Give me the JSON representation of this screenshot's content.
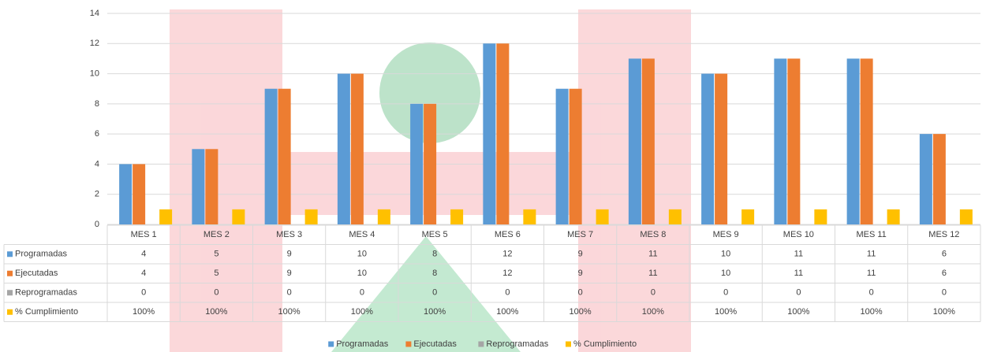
{
  "chart_data": {
    "type": "bar",
    "categories": [
      "MES 1",
      "MES 2",
      "MES 3",
      "MES 4",
      "MES 5",
      "MES 6",
      "MES 7",
      "MES 8",
      "MES 9",
      "MES 10",
      "MES 11",
      "MES 12"
    ],
    "series": [
      {
        "name": "Programadas",
        "color": "#5b9bd5",
        "values": [
          4,
          5,
          9,
          10,
          8,
          12,
          9,
          11,
          10,
          11,
          11,
          6
        ]
      },
      {
        "name": "Ejecutadas",
        "color": "#ed7d31",
        "values": [
          4,
          5,
          9,
          10,
          8,
          12,
          9,
          11,
          10,
          11,
          11,
          6
        ]
      },
      {
        "name": "Reprogramadas",
        "color": "#a5a5a5",
        "values": [
          0,
          0,
          0,
          0,
          0,
          0,
          0,
          0,
          0,
          0,
          0,
          0
        ]
      },
      {
        "name": "% Cumplimiento",
        "color": "#ffc000",
        "values": [
          1,
          1,
          1,
          1,
          1,
          1,
          1,
          1,
          1,
          1,
          1,
          1
        ],
        "value_labels": [
          "100%",
          "100%",
          "100%",
          "100%",
          "100%",
          "100%",
          "100%",
          "100%",
          "100%",
          "100%",
          "100%",
          "100%"
        ]
      }
    ],
    "ylim": [
      0,
      14
    ],
    "yticks": [
      0,
      2,
      4,
      6,
      8,
      10,
      12,
      14
    ],
    "grid": true,
    "legend": "bottom"
  }
}
